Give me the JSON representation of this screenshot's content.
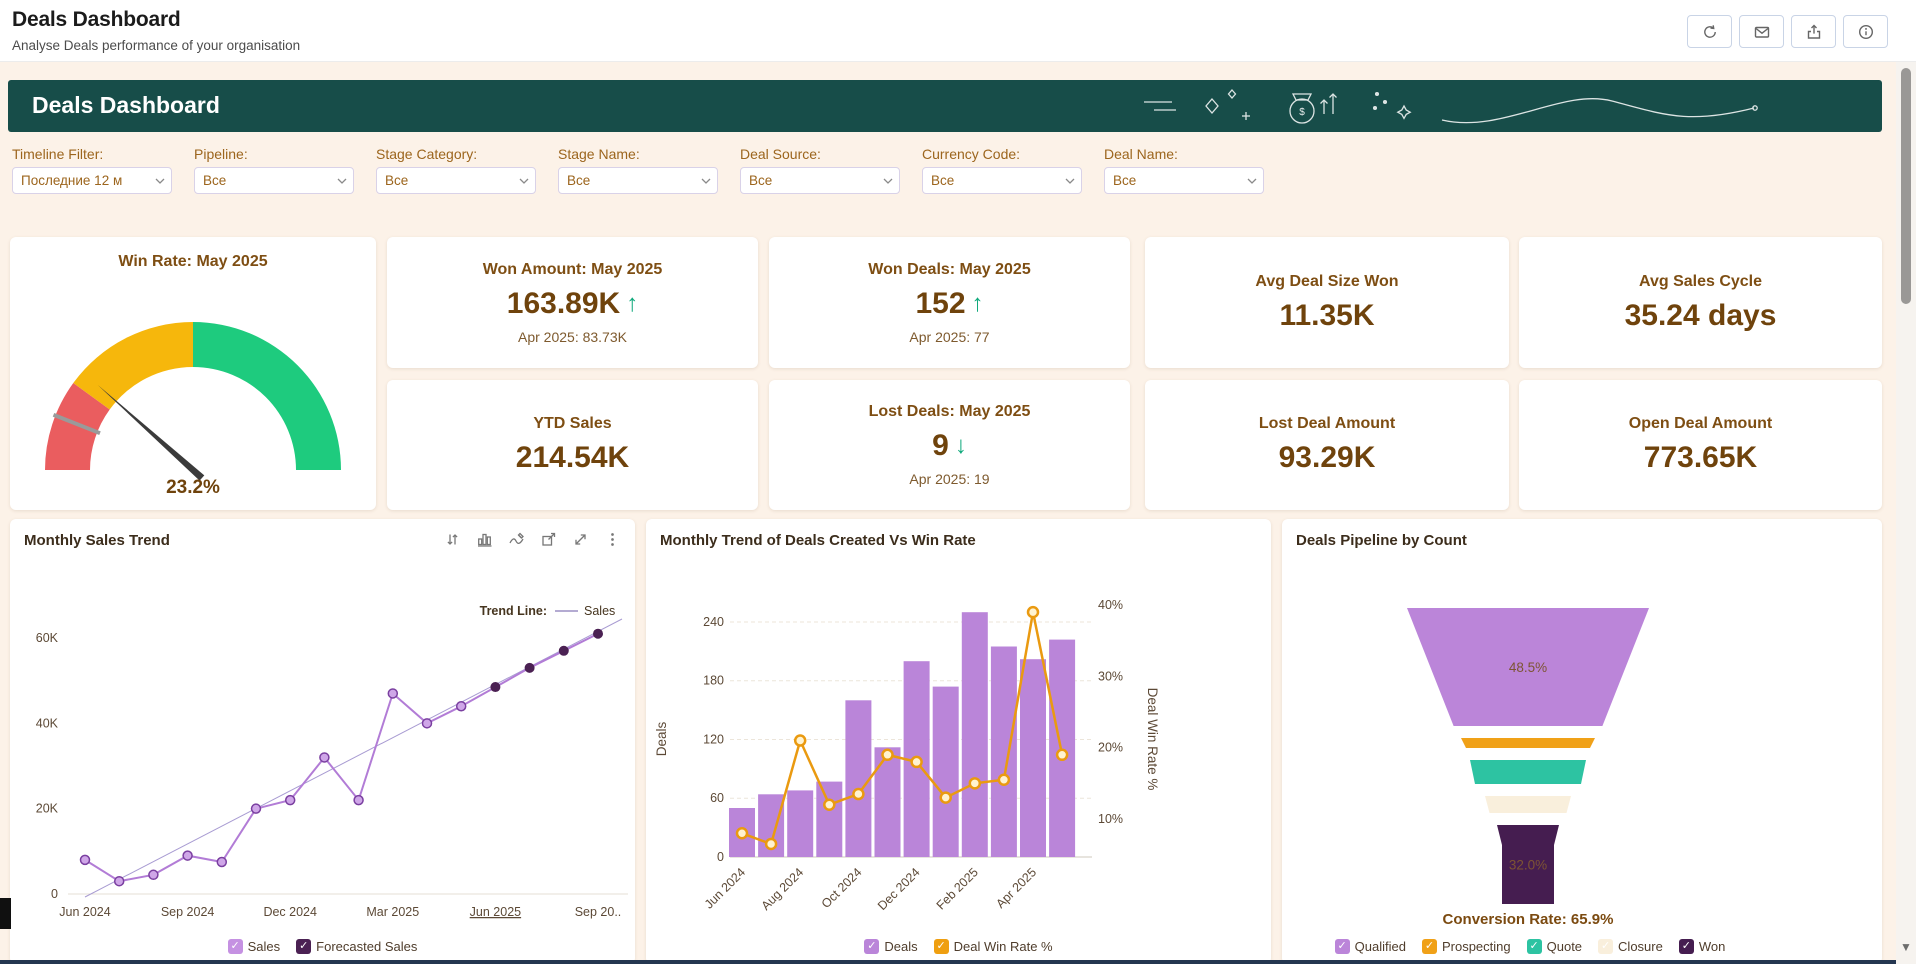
{
  "header": {
    "title": "Deals Dashboard",
    "subtitle": "Analyse Deals performance of your organisation",
    "actions": [
      {
        "name": "refresh"
      },
      {
        "name": "email"
      },
      {
        "name": "export"
      },
      {
        "name": "info"
      }
    ]
  },
  "banner": {
    "title": "Deals Dashboard"
  },
  "filters": [
    {
      "label": "Timeline Filter:",
      "value": "Последние 12 м"
    },
    {
      "label": "Pipeline:",
      "value": "Все"
    },
    {
      "label": "Stage Category:",
      "value": "Все"
    },
    {
      "label": "Stage Name:",
      "value": "Все"
    },
    {
      "label": "Deal Source:",
      "value": "Все"
    },
    {
      "label": "Currency Code:",
      "value": "Все"
    },
    {
      "label": "Deal Name:",
      "value": "Все"
    }
  ],
  "kpis": {
    "gauge": {
      "title": "Win Rate: May 2025",
      "value": 23.2,
      "value_label": "23.2%",
      "min": 0,
      "max": 100,
      "marker": 12,
      "bands": [
        {
          "to": 20,
          "color": "#ea5d5f"
        },
        {
          "to": 50,
          "color": "#f6b70c"
        },
        {
          "to": 100,
          "color": "#1ecb7e"
        }
      ]
    },
    "cards_row1": [
      {
        "title": "Won Amount: May 2025",
        "value": "163.89K",
        "trend": "up",
        "sub": "Apr 2025: 83.73K"
      },
      {
        "title": "Won Deals: May 2025",
        "value": "152",
        "trend": "up",
        "sub": "Apr 2025: 77"
      },
      {
        "title": "Avg Deal Size Won",
        "value": "11.35K"
      },
      {
        "title": "Avg Sales Cycle",
        "value": "35.24 days"
      }
    ],
    "cards_row2": [
      {
        "title": "YTD Sales",
        "value": "214.54K"
      },
      {
        "title": "Lost Deals: May 2025",
        "value": "9",
        "trend": "down",
        "sub": "Apr 2025: 19"
      },
      {
        "title": "Lost Deal Amount",
        "value": "93.29K"
      },
      {
        "title": "Open Deal Amount",
        "value": "773.65K"
      }
    ],
    "trend_up_glyph": "↑",
    "trend_down_glyph": "↓"
  },
  "panels": {
    "sales_trend": {
      "legend_label": "Trend Line:",
      "legend": [
        {
          "label": "Sales",
          "color": "#c591e2"
        },
        {
          "label": "Forecasted Sales",
          "color": "#4b2153"
        }
      ]
    },
    "deals_winrate": {
      "legend": [
        {
          "label": "Deals",
          "color": "#ba85d9"
        },
        {
          "label": "Deal Win Rate %",
          "color": "#ef9f10"
        }
      ]
    },
    "pipeline": {
      "legend": [
        {
          "label": "Qualified",
          "color": "#bb85d9"
        },
        {
          "label": "Prospecting",
          "color": "#f0a118"
        },
        {
          "label": "Quote",
          "color": "#2dc3a2"
        },
        {
          "label": "Closure",
          "color": "#f9efdc"
        },
        {
          "label": "Won",
          "color": "#451d50"
        }
      ]
    }
  },
  "chart_data": [
    {
      "id": "monthly_sales_trend",
      "type": "line",
      "title": "Monthly Sales Trend",
      "x": [
        "Jun 2024",
        "Jul 2024",
        "Aug 2024",
        "Sep 2024",
        "Oct 2024",
        "Nov 2024",
        "Dec 2024",
        "Jan 2025",
        "Feb 2025",
        "Mar 2025",
        "Apr 2025",
        "May 2025",
        "Jun 2025",
        "Jul 2025",
        "Aug 2025",
        "Sep 2025"
      ],
      "series": [
        {
          "name": "Sales",
          "values_k": [
            8,
            3,
            4.5,
            9,
            7.5,
            20,
            22,
            32,
            22,
            47,
            40,
            44
          ]
        },
        {
          "name": "Forecasted Sales",
          "values_k": [
            48.5,
            53,
            57,
            61
          ],
          "starts_at": "Jun 2025"
        }
      ],
      "trend_line": "Sales",
      "ylabel": "",
      "y_ticks": [
        "0",
        "20K",
        "40K",
        "60K"
      ],
      "y_tick_values_k": [
        0,
        20,
        40,
        60
      ],
      "x_ticks": [
        "Jun 2024",
        "Sep 2024",
        "Dec 2024",
        "Mar 2025",
        "Jun 2025",
        "Sep 20.."
      ],
      "x_tick_month_index": [
        0,
        3,
        6,
        9,
        12,
        15
      ],
      "underlined_x_tick": "Jun 2025",
      "ylim_k": [
        0,
        70
      ]
    },
    {
      "id": "deals_created_vs_win_rate",
      "type": "combo",
      "title": "Monthly Trend of Deals Created Vs Win Rate",
      "categories": [
        "Jun 2024",
        "Jul 2024",
        "Aug 2024",
        "Sep 2024",
        "Oct 2024",
        "Nov 2024",
        "Dec 2024",
        "Jan 2025",
        "Feb 2025",
        "Mar 2025",
        "Apr 2025",
        "May 2025"
      ],
      "bars": {
        "name": "Deals",
        "values": [
          50,
          64,
          68,
          77,
          160,
          112,
          200,
          174,
          250,
          215,
          202,
          222
        ]
      },
      "line": {
        "name": "Deal Win Rate %",
        "values_pct": [
          8,
          6.5,
          21,
          12,
          13.5,
          19,
          18,
          13,
          15,
          15.5,
          39,
          19
        ]
      },
      "ylabel": "Deals",
      "y2label": "Deal Win Rate %",
      "y_ticks": [
        0,
        60,
        120,
        180,
        240
      ],
      "y2_ticks": [
        "10%",
        "20%",
        "30%",
        "40%"
      ],
      "y2_tick_values": [
        10,
        20,
        30,
        40
      ],
      "x_ticks": [
        "Jun 2024",
        "Aug 2024",
        "Oct 2024",
        "Dec 2024",
        "Feb 2025",
        "Apr 2025"
      ],
      "ylim": [
        0,
        240
      ],
      "y2lim_pct": [
        10,
        40
      ]
    },
    {
      "id": "deals_pipeline_by_count",
      "type": "funnel",
      "title": "Deals Pipeline by Count",
      "stages": [
        {
          "name": "Qualified",
          "color": "#bb85d9",
          "label": "48.5%",
          "top_w": 1.0,
          "bottom_w": 0.615,
          "h": 118
        },
        {
          "name": "Prospecting",
          "color": "#f0a118",
          "top_w": 0.554,
          "bottom_w": 0.512,
          "h": 10
        },
        {
          "name": "Quote",
          "color": "#2dc3a2",
          "top_w": 0.479,
          "bottom_w": 0.438,
          "h": 24
        },
        {
          "name": "Closure",
          "color": "#f9efdc",
          "top_w": 0.355,
          "bottom_w": 0.318,
          "h": 17
        },
        {
          "name": "Won",
          "color": "#451d50",
          "label": "32.0%",
          "top_w": 0.256,
          "bottom_w": 0.215,
          "h": 79
        }
      ],
      "conversion_label": "Conversion Rate: 65.9%"
    }
  ]
}
